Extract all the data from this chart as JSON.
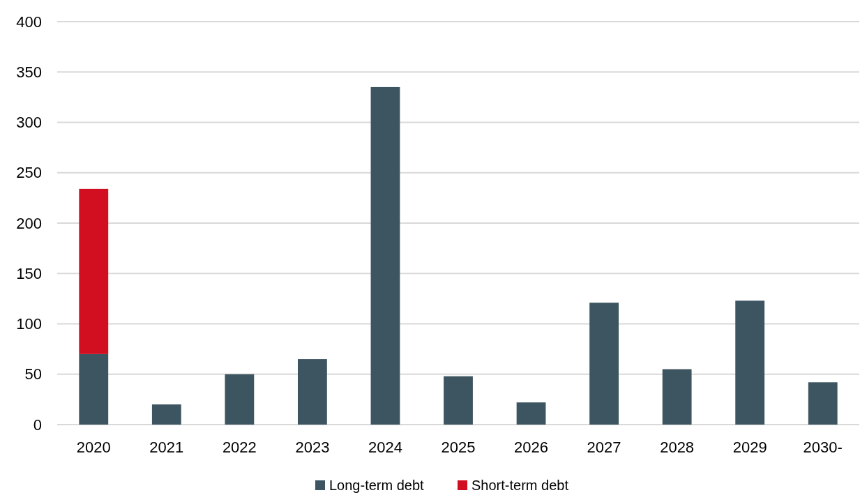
{
  "chart_data": {
    "type": "bar",
    "categories": [
      "2020",
      "2021",
      "2022",
      "2023",
      "2024",
      "2025",
      "2026",
      "2027",
      "2028",
      "2029",
      "2030-"
    ],
    "series": [
      {
        "name": "Long-term debt",
        "color": "#3d5560",
        "values": [
          70,
          20,
          50,
          65,
          335,
          48,
          22,
          121,
          55,
          123,
          42
        ]
      },
      {
        "name": "Short-term debt",
        "color": "#d20f20",
        "values": [
          164,
          null,
          null,
          null,
          null,
          null,
          null,
          null,
          null,
          null,
          null
        ]
      }
    ],
    "stacked": true,
    "ylim": [
      0,
      400
    ],
    "yticks": [
      0,
      50,
      100,
      150,
      200,
      250,
      300,
      350,
      400
    ],
    "grid": "y",
    "legend": "bottom"
  }
}
